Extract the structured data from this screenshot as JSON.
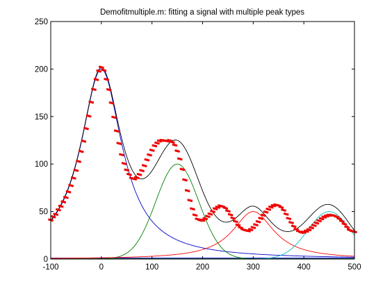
{
  "chart_data": {
    "type": "line",
    "title": "Demofitmultiple.m: fitting a signal with multiple peak types",
    "xlabel": "",
    "ylabel": "",
    "xlim": [
      -100,
      500
    ],
    "ylim": [
      0,
      250
    ],
    "xticks": [
      -100,
      0,
      100,
      200,
      300,
      400,
      500
    ],
    "yticks": [
      0,
      50,
      100,
      150,
      200,
      250
    ],
    "grid": false,
    "legend": "none",
    "colors": {
      "data_points": "#ee0000",
      "peak1": "#0000c8",
      "peak2": "#008000",
      "peak3": "#ff0000",
      "peak4": "#00bfbf",
      "fit": "#000000"
    },
    "components": [
      {
        "shape": "lorentzian",
        "center": 0,
        "height": 200,
        "width": 100,
        "color_key": "peak1"
      },
      {
        "shape": "gaussian",
        "center": 150,
        "height": 100,
        "width": 100,
        "color_key": "peak2"
      },
      {
        "shape": "lorentzian",
        "center": 300,
        "height": 50,
        "width": 100,
        "color_key": "peak3"
      },
      {
        "shape": "gaussian",
        "center": 450,
        "height": 50,
        "width": 100,
        "color_key": "peak4"
      }
    ],
    "baseline_segments": [
      {
        "color_key": "peak1",
        "x": [
          -100,
          500
        ],
        "y": [
          1,
          1
        ]
      },
      {
        "color_key": "peak2",
        "x": [
          -100,
          500
        ],
        "y": [
          0.3,
          0.3
        ]
      }
    ],
    "data_points": {
      "x": [
        -100,
        -95,
        -90,
        -85,
        -80,
        -75,
        -70,
        -65,
        -60,
        -55,
        -50,
        -45,
        -40,
        -35,
        -30,
        -25,
        -20,
        -15,
        -10,
        -5,
        0,
        5,
        10,
        15,
        20,
        25,
        30,
        35,
        40,
        45,
        50,
        55,
        60,
        65,
        70,
        75,
        80,
        85,
        90,
        95,
        100,
        105,
        110,
        115,
        120,
        125,
        130,
        135,
        140,
        145,
        150,
        155,
        160,
        165,
        170,
        175,
        180,
        185,
        190,
        195,
        200,
        205,
        210,
        215,
        220,
        225,
        230,
        235,
        240,
        245,
        250,
        255,
        260,
        265,
        270,
        275,
        280,
        285,
        290,
        295,
        300,
        305,
        310,
        315,
        320,
        325,
        330,
        335,
        340,
        345,
        350,
        355,
        360,
        365,
        370,
        375,
        380,
        385,
        390,
        395,
        400,
        405,
        410,
        415,
        420,
        425,
        430,
        435,
        440,
        445,
        450,
        455,
        460,
        465,
        470,
        475,
        480,
        485,
        490,
        495,
        500
      ],
      "y": [
        41.1,
        44.5,
        47.1,
        51.8,
        55.6,
        60.2,
        64.9,
        70.8,
        77.4,
        85.3,
        93.4,
        102.8,
        113.3,
        124.1,
        137.4,
        150.6,
        165.2,
        178.6,
        189.0,
        197.9,
        201.9,
        198.7,
        189.1,
        178.2,
        164.3,
        149.2,
        134.8,
        121.7,
        109.8,
        100.5,
        93.7,
        89.1,
        85.1,
        84.3,
        85.8,
        89.0,
        93.1,
        98.3,
        104.4,
        109.6,
        114.5,
        119.2,
        122.1,
        124.3,
        124.9,
        124.7,
        124.2,
        124.8,
        123.1,
        120.0,
        113.7,
        105.4,
        94.4,
        83.3,
        72.0,
        61.7,
        52.8,
        46.3,
        42.0,
        40.8,
        40.9,
        42.5,
        44.9,
        47.4,
        50.1,
        52.9,
        54.6,
        56.0,
        55.3,
        53.7,
        50.6,
        46.7,
        43.1,
        39.6,
        35.8,
        33.1,
        31.1,
        30.2,
        29.7,
        31.0,
        33.2,
        36.1,
        39.3,
        42.8,
        46.2,
        49.5,
        52.4,
        54.7,
        56.2,
        57.0,
        56.4,
        54.6,
        51.5,
        47.3,
        42.7,
        38.4,
        34.5,
        31.3,
        29.1,
        28.0,
        28.3,
        29.4,
        30.9,
        33.0,
        35.4,
        37.9,
        40.3,
        42.4,
        44.2,
        45.4,
        46.1,
        46.2,
        45.7,
        44.4,
        42.4,
        39.9,
        36.9,
        33.7,
        30.6,
        29.4,
        28.8
      ]
    }
  }
}
